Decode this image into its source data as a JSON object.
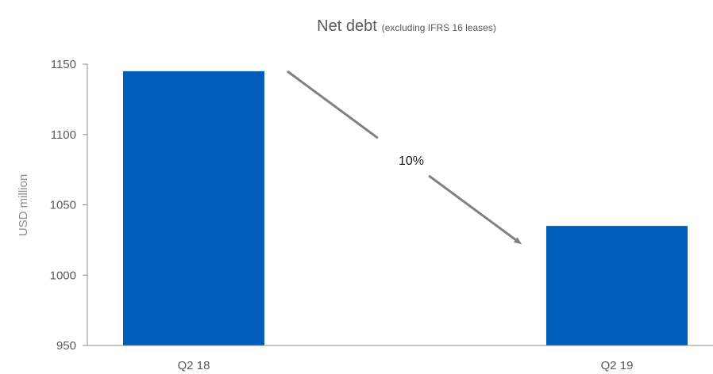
{
  "chart_data": {
    "type": "bar",
    "title": "Net debt",
    "subtitle": "(excluding IFRS 16 leases)",
    "xlabel": "",
    "ylabel": "USD million",
    "categories": [
      "Q2 18",
      "Q2 19"
    ],
    "values": [
      1145,
      1035
    ],
    "ylim": [
      950,
      1150
    ],
    "yticks": [
      950,
      1000,
      1050,
      1100,
      1150
    ],
    "grid": false,
    "legend": "none",
    "annotation": {
      "text": "10%",
      "kind": "arrow-down-from-first-to-second"
    },
    "colors": {
      "bar": "#005cb9",
      "arrow": "#808080",
      "axis": "#8c8c8c",
      "text": "#595959"
    }
  }
}
